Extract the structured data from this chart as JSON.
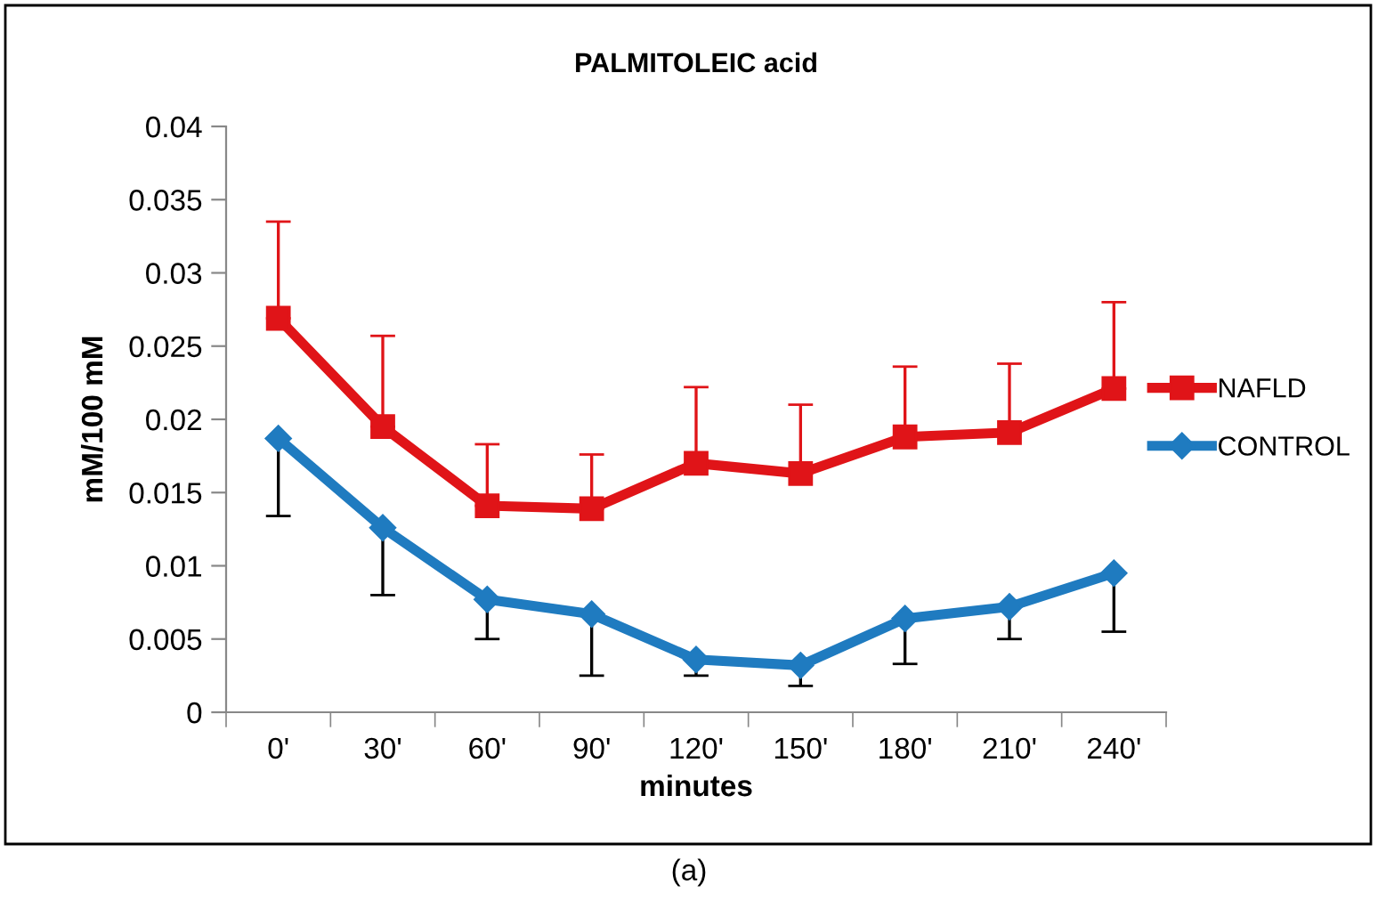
{
  "chart_data": {
    "type": "line",
    "title": "PALMITOLEIC acid",
    "xlabel": "minutes",
    "ylabel": "mM/100 mM",
    "categories": [
      "0'",
      "30'",
      "60'",
      "90'",
      "120'",
      "150'",
      "180'",
      "210'",
      "240'"
    ],
    "series": [
      {
        "name": "NAFLD",
        "color": "#e01418",
        "marker": "square",
        "values": [
          0.0269,
          0.0195,
          0.0141,
          0.0139,
          0.017,
          0.0163,
          0.0188,
          0.0191,
          0.0221
        ],
        "errors": [
          [
            0.0269,
            0.0335
          ],
          [
            0.0195,
            0.0257
          ],
          [
            0.0141,
            0.0183
          ],
          [
            0.0139,
            0.0176
          ],
          [
            0.017,
            0.0222
          ],
          [
            0.0163,
            0.021
          ],
          [
            0.0188,
            0.0236
          ],
          [
            0.0191,
            0.0238
          ],
          [
            0.0221,
            0.028
          ]
        ]
      },
      {
        "name": "CONTROL",
        "color": "#1f7bc0",
        "marker": "diamond",
        "values": [
          0.0187,
          0.0126,
          0.0077,
          0.0067,
          0.0036,
          0.0032,
          0.0064,
          0.0072,
          0.0095
        ],
        "errors": [
          [
            0.0134,
            0.0187
          ],
          [
            0.008,
            0.0126
          ],
          [
            0.005,
            0.0077
          ],
          [
            0.0025,
            0.0067
          ],
          [
            0.0025,
            0.0036
          ],
          [
            0.0018,
            0.0032
          ],
          [
            0.0033,
            0.0064
          ],
          [
            0.005,
            0.0072
          ],
          [
            0.0055,
            0.0095
          ]
        ]
      }
    ],
    "ylim": [
      0,
      0.04
    ],
    "yticks": [
      0,
      0.005,
      0.01,
      0.015,
      0.02,
      0.025,
      0.03,
      0.035,
      0.04
    ],
    "grid": false,
    "legend": "right",
    "line_style": "solid",
    "annotations": [
      "(a)"
    ]
  }
}
